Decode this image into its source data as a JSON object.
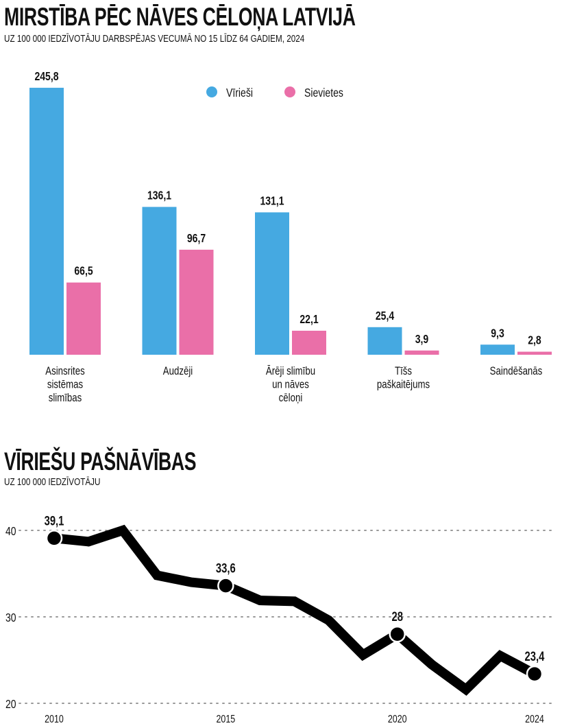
{
  "chart_data": [
    {
      "type": "bar",
      "title": "MIRSTĪBA PĒC NĀVES CĒLOŅA LATVIJĀ",
      "subtitle": "UZ 100 000 IEDZĪVOTĀJU DARBSPĒJAS VECUMĀ NO 15 LĪDZ 64 GADIEM, 2024",
      "categories": [
        [
          "Asinsrites",
          "sistēmas",
          "slimības"
        ],
        [
          "Audzēji"
        ],
        [
          "Ārēji slimību",
          "un nāves",
          "cēloņi"
        ],
        [
          "Tīšs",
          "paškaitējums"
        ],
        [
          "Saindēšanās"
        ]
      ],
      "series": [
        {
          "name": "Vīrieši",
          "color": "#45a9e1",
          "values": [
            245.8,
            136.1,
            131.1,
            25.4,
            9.3
          ],
          "labels": [
            "245,8",
            "136,1",
            "131,1",
            "25,4",
            "9,3"
          ]
        },
        {
          "name": "Sievietes",
          "color": "#ea6fa8",
          "values": [
            66.5,
            96.7,
            22.1,
            3.9,
            2.8
          ],
          "labels": [
            "66,5",
            "96,7",
            "22,1",
            "3,9",
            "2,8"
          ]
        }
      ],
      "legend": "top-center",
      "grid": false
    },
    {
      "type": "line",
      "title": "VĪRIEŠU PAŠNĀVĪBAS",
      "subtitle": "UZ 100 000 IEDZĪVOTĀJU",
      "x": [
        2010,
        2011,
        2012,
        2013,
        2014,
        2015,
        2016,
        2017,
        2018,
        2019,
        2020,
        2021,
        2022,
        2023,
        2024
      ],
      "y": [
        39.1,
        38.7,
        40.0,
        34.8,
        34.0,
        33.6,
        31.9,
        31.8,
        29.6,
        25.6,
        28.0,
        24.5,
        21.6,
        25.5,
        23.4
      ],
      "annotations": [
        {
          "x": 2010,
          "y": 39.1,
          "label": "39,1"
        },
        {
          "x": 2015,
          "y": 33.6,
          "label": "33,6"
        },
        {
          "x": 2020,
          "y": 28.0,
          "label": "28"
        },
        {
          "x": 2024,
          "y": 23.4,
          "label": "23,4"
        }
      ],
      "yticks": [
        20,
        30,
        40
      ],
      "ytick_labels": [
        "20",
        "30",
        "40"
      ],
      "xticks": [
        2010,
        2015,
        2020,
        2024
      ],
      "xtick_labels": [
        "2010",
        "2015",
        "2020",
        "2024"
      ],
      "ylim": [
        20,
        40
      ],
      "grid": true,
      "color": "#000000"
    }
  ]
}
